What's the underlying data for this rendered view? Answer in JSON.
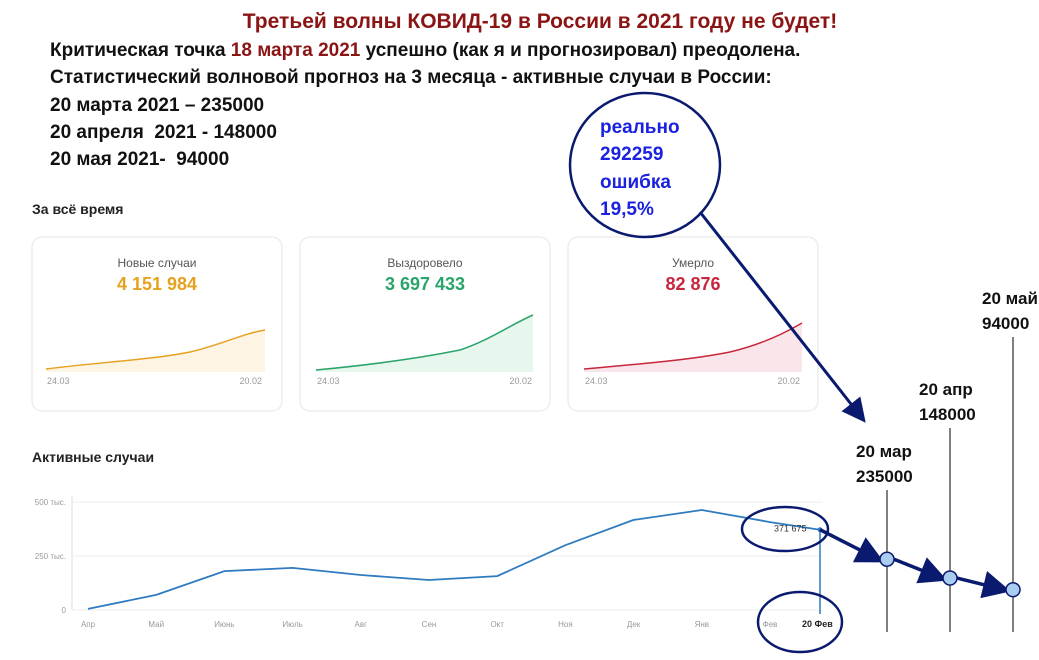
{
  "header": {
    "title": "Третьей волны КОВИД-19 в России в 2021 году не будет!",
    "line1": [
      "Критическая точка ",
      "18 марта 2021",
      " успешно (как я и прогнозировал) преодолена."
    ],
    "line2": "Статистический волновой прогноз на 3 месяца - активные случаи в России:",
    "forecasts": [
      "20 марта 2021 – 235000",
      "20 апреля  2021 - 148000",
      "20 мая 2021-  94000"
    ]
  },
  "bubble": [
    "реально",
    "292259",
    "ошибка",
    "19,5%"
  ],
  "dashboard": {
    "title": "За всё время",
    "cards": [
      {
        "label": "Новые случаи",
        "value": "4 151 984",
        "start": "24.03",
        "end": "20.02"
      },
      {
        "label": "Выздоровело",
        "value": "3 697 433",
        "start": "24.03",
        "end": "20.02"
      },
      {
        "label": "Умерло",
        "value": "82 876",
        "start": "24.03",
        "end": "20.02"
      }
    ]
  },
  "chart_data": {
    "type": "line",
    "title": "Активные случаи",
    "categories": [
      "Апр",
      "Май",
      "Июнь",
      "Июль",
      "Авг",
      "Сен",
      "Окт",
      "Ноя",
      "Дек",
      "Янв",
      "Фев",
      "20 Фев"
    ],
    "values": [
      5000,
      70000,
      180000,
      195000,
      162000,
      139000,
      157000,
      300000,
      417000,
      463000,
      407000,
      371675
    ],
    "value_labels": [
      null,
      null,
      null,
      null,
      null,
      null,
      null,
      null,
      null,
      null,
      null,
      "371 675"
    ],
    "color": "#2f7bbf",
    "ylim": [
      0,
      500000
    ],
    "yticks": [
      0,
      {
        "value": 250000,
        "label": "250 тыс."
      },
      {
        "value": 500000,
        "label": "500 тыс."
      }
    ],
    "grid": true,
    "forecast": {
      "labels": [
        "20 мар",
        "20 апр",
        "20 май"
      ],
      "values": [
        235000,
        148000,
        94000
      ]
    }
  }
}
